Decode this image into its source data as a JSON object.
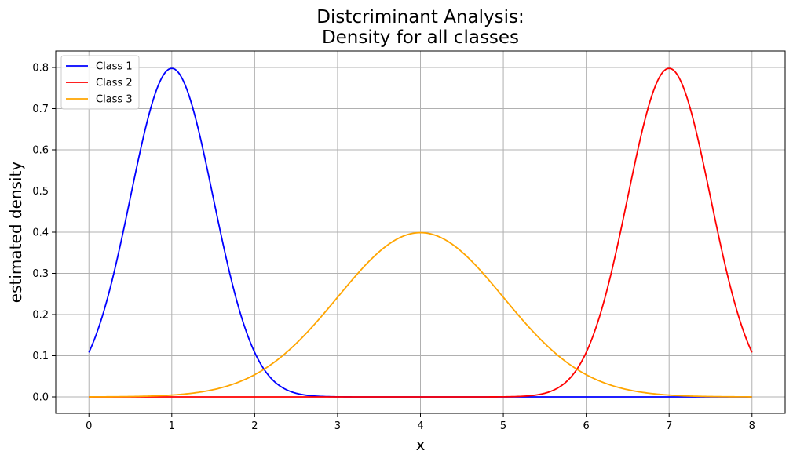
{
  "chart_data": {
    "type": "line",
    "title": [
      "Distcriminant Analysis:",
      "Density for all classes"
    ],
    "xlabel": "x",
    "ylabel": "estimated density",
    "xlim": [
      -0.4,
      8.4
    ],
    "ylim": [
      -0.04,
      0.84
    ],
    "x_ticks": [
      0,
      1,
      2,
      3,
      4,
      5,
      6,
      7,
      8
    ],
    "y_ticks": [
      0.0,
      0.1,
      0.2,
      0.3,
      0.4,
      0.5,
      0.6,
      0.7,
      0.8
    ],
    "grid": true,
    "legend_position": "upper-left",
    "series": [
      {
        "name": "Class 1",
        "color": "#0000ff",
        "distribution": "normal",
        "mean": 1,
        "sd": 0.5,
        "x_range": [
          0,
          8
        ]
      },
      {
        "name": "Class 2",
        "color": "#ff0000",
        "distribution": "normal",
        "mean": 7,
        "sd": 0.5,
        "x_range": [
          0,
          8
        ]
      },
      {
        "name": "Class 3",
        "color": "#ffa500",
        "distribution": "normal",
        "mean": 4,
        "sd": 1,
        "x_range": [
          0,
          8
        ]
      }
    ]
  }
}
